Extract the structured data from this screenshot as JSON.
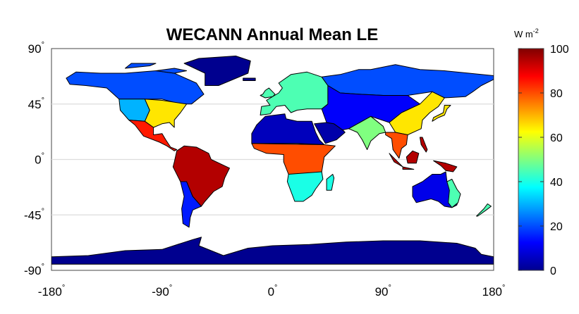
{
  "title": "WECANN Annual Mean LE",
  "map": {
    "projection": "equirectangular",
    "lon_range": [
      -180,
      180
    ],
    "lat_range": [
      -90,
      90
    ],
    "gridlines_lat": [
      45,
      0,
      -45
    ],
    "ocean_color": "#ffffff",
    "coastline_color": "#000000"
  },
  "axes": {
    "x_ticks": [
      {
        "value": -180,
        "label": "-180"
      },
      {
        "value": -90,
        "label": "-90"
      },
      {
        "value": 0,
        "label": "0"
      },
      {
        "value": 90,
        "label": "90"
      },
      {
        "value": 180,
        "label": "180"
      }
    ],
    "y_ticks": [
      {
        "value": 90,
        "label": "90"
      },
      {
        "value": 45,
        "label": "45"
      },
      {
        "value": 0,
        "label": "0"
      },
      {
        "value": -45,
        "label": "-45"
      },
      {
        "value": -90,
        "label": "-90"
      }
    ],
    "degree_symbol": "°"
  },
  "colorbar": {
    "unit_base": "W m",
    "unit_exponent": "-2",
    "range": [
      0,
      100
    ],
    "ticks": [
      "100",
      "80",
      "60",
      "40",
      "20",
      "0"
    ],
    "tick_values": [
      100,
      80,
      60,
      40,
      20,
      0
    ],
    "colormap": "jet",
    "colors": [
      "#00008f",
      "#0000ff",
      "#0080ff",
      "#00ffff",
      "#80ff80",
      "#ffff00",
      "#ff8000",
      "#ff0000",
      "#800000"
    ]
  },
  "regions": [
    {
      "name": "Amazon basin",
      "value": 95
    },
    {
      "name": "Congo basin",
      "value": 80
    },
    {
      "name": "Sahara desert",
      "value": 5
    },
    {
      "name": "Arabian peninsula",
      "value": 3
    },
    {
      "name": "Maritime continent",
      "value": 95
    },
    {
      "name": "Southeast Asia",
      "value": 80
    },
    {
      "name": "Eastern United States",
      "value": 65
    },
    {
      "name": "Central America",
      "value": 85
    },
    {
      "name": "Siberia",
      "value": 20
    },
    {
      "name": "Central Asia",
      "value": 12
    },
    {
      "name": "Western United States",
      "value": 30
    },
    {
      "name": "Canada",
      "value": 20
    },
    {
      "name": "Europe",
      "value": 45
    },
    {
      "name": "Australia interior",
      "value": 10
    },
    {
      "name": "Eastern Australia",
      "value": 45
    },
    {
      "name": "Southern Africa",
      "value": 40
    },
    {
      "name": "Patagonia",
      "value": 15
    },
    {
      "name": "India",
      "value": 50
    },
    {
      "name": "Eastern China",
      "value": 65
    },
    {
      "name": "Greenland",
      "value": 0
    },
    {
      "name": "Antarctica",
      "value": 0
    }
  ]
}
